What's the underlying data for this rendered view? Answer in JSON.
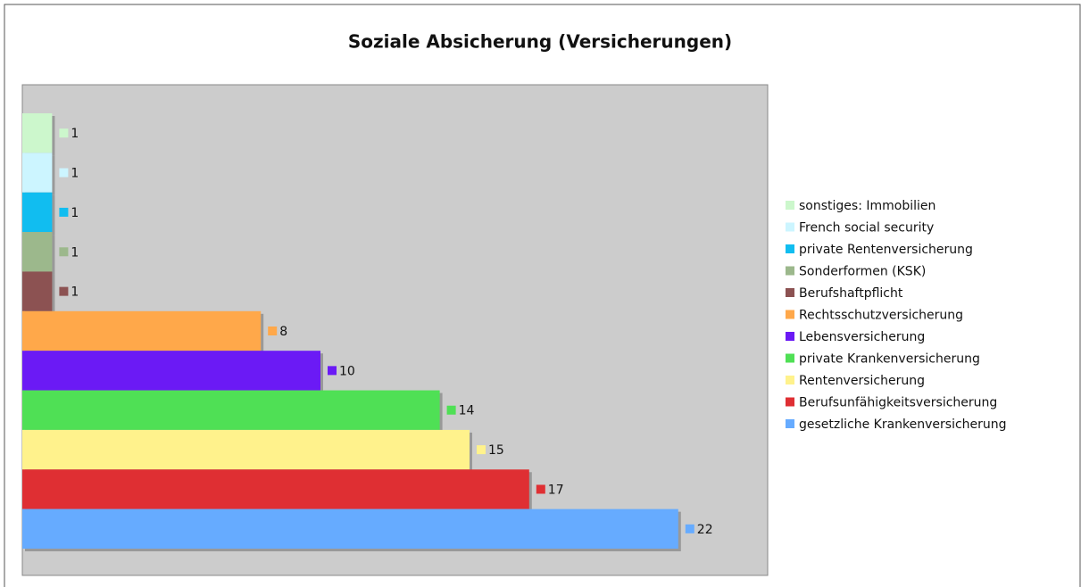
{
  "chart_data": {
    "type": "hbar",
    "title": "Soziale Absicherung (Versicherungen)",
    "categories": [
      "sonstiges: Immobilien",
      "French social security",
      "private Rentenversicherung",
      "Sonderformen (KSK)",
      "Berufshaftpflicht",
      "Rechtsschutzversicherung",
      "Lebensversicherung",
      "private Krankenversicherung",
      "Rentenversicherung",
      "Berufsunfähigkeitsversicherung",
      "gesetzliche Krankenversicherung"
    ],
    "values": [
      1,
      1,
      1,
      1,
      1,
      8,
      10,
      14,
      15,
      17,
      22
    ],
    "colors": [
      "#ccf7cc",
      "#ccf5ff",
      "#11bdf0",
      "#9cb88c",
      "#8c5252",
      "#ffa84a",
      "#6b1af5",
      "#4fe055",
      "#fff28c",
      "#df2f33",
      "#66abff"
    ],
    "xlim": [
      0,
      25
    ],
    "legend": "right"
  }
}
